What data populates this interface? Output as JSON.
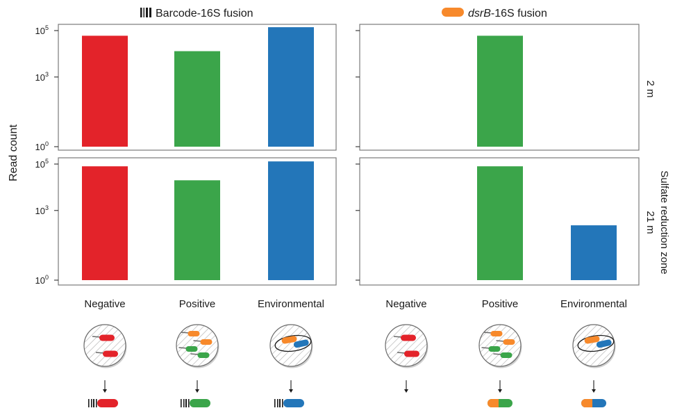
{
  "figure": {
    "ylabel": "Read count",
    "columns": [
      {
        "title_prefix": "",
        "title_italic": "",
        "title_suffix": "Barcode-16S fusion",
        "icon": "barcode-icon"
      },
      {
        "title_prefix": "",
        "title_italic": "dsrB",
        "title_suffix": "-16S fusion",
        "icon": "orange-capsule-icon"
      }
    ],
    "rows": [
      {
        "label": "2 m"
      },
      {
        "label_line1": "21 m",
        "label_line2": "Sulfate reduction zone"
      }
    ],
    "categories": [
      "Negative",
      "Positive",
      "Environmental"
    ],
    "colors": {
      "Negative": "#e3232a",
      "Positive": "#3ba54a",
      "Environmental": "#2376b9",
      "dsrB": "#f7892b"
    },
    "yticks": [
      {
        "label_base": "10",
        "label_exp": "0",
        "value": 1
      },
      {
        "label_base": "10",
        "label_exp": "3",
        "value": 1000
      },
      {
        "label_base": "10",
        "label_exp": "5",
        "value": 100000
      }
    ]
  },
  "chart_data": [
    {
      "type": "bar",
      "panel": "Barcode-16S fusion, 2 m",
      "scale": "log",
      "categories": [
        "Negative",
        "Positive",
        "Environmental"
      ],
      "values": [
        60000,
        13000,
        140000
      ],
      "ylim": [
        1,
        100000
      ]
    },
    {
      "type": "bar",
      "panel": "dsrB-16S fusion, 2 m",
      "scale": "log",
      "categories": [
        "Negative",
        "Positive",
        "Environmental"
      ],
      "values": [
        null,
        60000,
        null
      ],
      "ylim": [
        1,
        100000
      ]
    },
    {
      "type": "bar",
      "panel": "Barcode-16S fusion, 21 m",
      "scale": "log",
      "categories": [
        "Negative",
        "Positive",
        "Environmental"
      ],
      "values": [
        80000,
        20000,
        130000
      ],
      "ylim": [
        1,
        100000
      ]
    },
    {
      "type": "bar",
      "panel": "dsrB-16S fusion, 21 m",
      "scale": "log",
      "categories": [
        "Negative",
        "Positive",
        "Environmental"
      ],
      "values": [
        null,
        80000,
        230
      ],
      "ylim": [
        1,
        100000
      ]
    }
  ]
}
